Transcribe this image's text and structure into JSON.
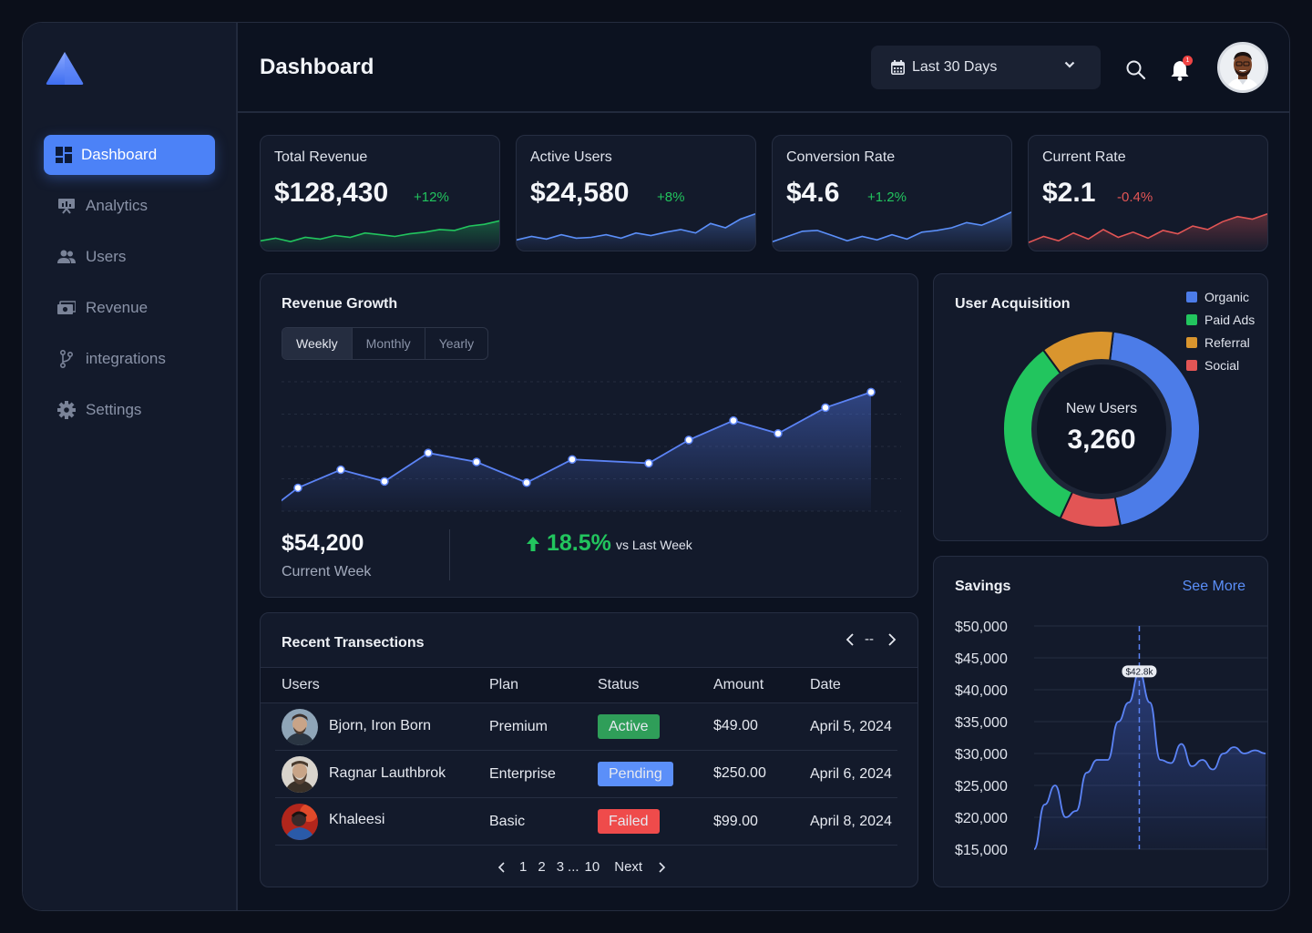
{
  "app": {
    "title": "Dashboard"
  },
  "sidebar": {
    "items": [
      {
        "label": "Dashboard",
        "icon": "grid-icon"
      },
      {
        "label": "Analytics",
        "icon": "presentation-icon"
      },
      {
        "label": "Users",
        "icon": "users-icon"
      },
      {
        "label": "Revenue",
        "icon": "money-icon"
      },
      {
        "label": "integrations",
        "icon": "branch-icon"
      },
      {
        "label": "Settings",
        "icon": "gear-icon"
      }
    ]
  },
  "header": {
    "title": "Dashboard",
    "date_range": "Last 30 Days",
    "notification_count": "1"
  },
  "kpis": [
    {
      "label": "Total Revenue",
      "value": "$128,430",
      "delta": "+12%",
      "trend": "up",
      "color": "#22c55e",
      "series": [
        5,
        8,
        4,
        9,
        7,
        11,
        9,
        14,
        12,
        10,
        13,
        15,
        18,
        17,
        22,
        24,
        28
      ]
    },
    {
      "label": "Active Users",
      "value": "$24,580",
      "delta": "+8%",
      "trend": "up",
      "color": "#5b8ff9",
      "series": [
        6,
        10,
        7,
        12,
        8,
        9,
        12,
        8,
        14,
        11,
        15,
        18,
        14,
        25,
        20,
        30,
        36
      ]
    },
    {
      "label": "Conversion Rate",
      "value": "$4.6",
      "delta": "+1.2%",
      "trend": "up",
      "color": "#5b8ff9",
      "series": [
        4,
        10,
        16,
        17,
        11,
        5,
        10,
        6,
        12,
        7,
        15,
        17,
        20,
        26,
        23,
        30,
        38
      ]
    },
    {
      "label": "Current Rate",
      "value": "$2.1",
      "delta": "-0.4%",
      "trend": "down",
      "color": "#e25555",
      "series": [
        3,
        10,
        5,
        14,
        7,
        18,
        9,
        15,
        8,
        17,
        13,
        22,
        18,
        27,
        33,
        30,
        36
      ]
    }
  ],
  "revenue": {
    "title": "Revenue Growth",
    "tabs": [
      "Weekly",
      "Monthly",
      "Yearly"
    ],
    "active_tab": "Weekly",
    "current_value": "$54,200",
    "current_label": "Current Week",
    "change": "18.5%",
    "change_label": "vs Last Week"
  },
  "acquisition": {
    "title": "User Acquisition",
    "center_label": "New Users",
    "center_value": "3,260",
    "legend": [
      {
        "name": "Organic",
        "color": "#4c7ce8"
      },
      {
        "name": "Paid Ads",
        "color": "#22c55e"
      },
      {
        "name": "Referral",
        "color": "#d9952e"
      },
      {
        "name": "Social",
        "color": "#e25555"
      }
    ]
  },
  "transactions": {
    "title": "Recent Transections",
    "page_indicator": "--",
    "columns": [
      "Users",
      "Plan",
      "Status",
      "Amount",
      "Date"
    ],
    "rows": [
      {
        "user": "Bjorn, Iron Born",
        "plan": "Premium",
        "status": "Active",
        "status_color": "#2f9e59",
        "amount": "$49.00",
        "date": "April 5, 2024"
      },
      {
        "user": "Ragnar Lauthbrok",
        "plan": "Enterprise",
        "status": "Pending",
        "status_color": "#5b8ff9",
        "amount": "$250.00",
        "date": "April 6, 2024"
      },
      {
        "user": "Khaleesi",
        "plan": "Basic",
        "status": "Failed",
        "status_color": "#ef4b4b",
        "amount": "$99.00",
        "date": "April 8, 2024"
      }
    ],
    "pager": {
      "p1": "1",
      "p2": "2",
      "p3": "3",
      "ellipsis": "...",
      "last": "10",
      "next": "Next"
    }
  },
  "savings": {
    "title": "Savings",
    "link": "See More",
    "tooltip": "$42.8k"
  },
  "chart_data": [
    {
      "type": "line",
      "title": "Revenue Growth",
      "x": [
        1,
        2,
        3,
        4,
        5,
        6,
        7,
        8,
        9,
        10,
        11,
        12,
        13
      ],
      "values": [
        18,
        32,
        23,
        45,
        38,
        22,
        40,
        37,
        55,
        70,
        60,
        80,
        92
      ],
      "ylim": [
        0,
        100
      ],
      "grid": true
    },
    {
      "type": "pie",
      "title": "User Acquisition",
      "labels": [
        "Organic",
        "Social",
        "Paid Ads",
        "Referral"
      ],
      "values": [
        45,
        10,
        33,
        12
      ]
    },
    {
      "type": "area",
      "title": "Savings",
      "y_ticks": [
        "$50,000",
        "$45,000",
        "$40,000",
        "$35,000",
        "$30,000",
        "$25,000",
        "$20,000",
        "$15,000"
      ],
      "ylim": [
        15000,
        50000
      ],
      "x": [
        0,
        1,
        2,
        3,
        4,
        5,
        6,
        7,
        8,
        9,
        10,
        11,
        12,
        13,
        14,
        15,
        16,
        17,
        18,
        19,
        20,
        21,
        22
      ],
      "values": [
        15000,
        22000,
        25000,
        20000,
        21000,
        27000,
        29000,
        29000,
        35000,
        38000,
        42800,
        38000,
        29000,
        28500,
        31500,
        28000,
        29000,
        27500,
        30000,
        31000,
        30000,
        30500,
        30000
      ],
      "highlight": {
        "x": 10,
        "label": "$42.8k"
      }
    }
  ]
}
